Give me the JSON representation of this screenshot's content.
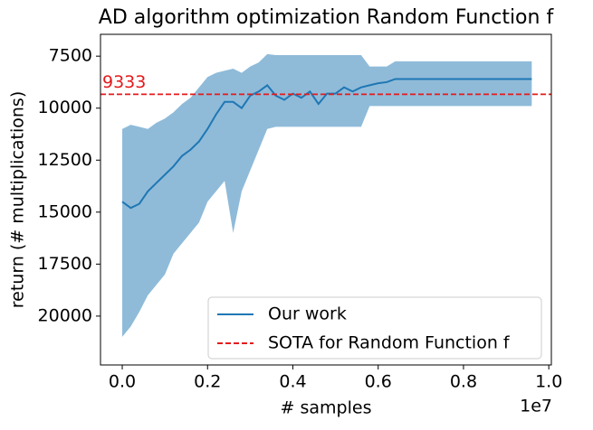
{
  "chart_data": {
    "type": "line",
    "title": "AD algorithm optimization Random Function f",
    "x_label": "# samples",
    "y_label": "return (# multiplications)",
    "x_offset_label": "1e7",
    "x": [
      0,
      200000,
      400000,
      600000,
      800000,
      1000000,
      1200000,
      1400000,
      1600000,
      1800000,
      2000000,
      2200000,
      2400000,
      2600000,
      2800000,
      3000000,
      3200000,
      3400000,
      3600000,
      3800000,
      4000000,
      4200000,
      4400000,
      4600000,
      4800000,
      5000000,
      5200000,
      5400000,
      5600000,
      5800000,
      6000000,
      6200000,
      6400000,
      6600000,
      7000000,
      8000000,
      9000000,
      9600000
    ],
    "series": [
      {
        "name": "Our work",
        "color": "#1f77b4",
        "values": [
          14500,
          14800,
          14600,
          14000,
          13600,
          13200,
          12800,
          12300,
          12000,
          11600,
          11000,
          10300,
          9700,
          9700,
          10000,
          9400,
          9200,
          8900,
          9400,
          9600,
          9300,
          9500,
          9200,
          9800,
          9300,
          9300,
          9000,
          9200,
          9000,
          8900,
          8800,
          8750,
          8600,
          8600,
          8600,
          8600,
          8600,
          8600
        ],
        "band_high": [
          11000,
          10800,
          10900,
          11000,
          10700,
          10500,
          10200,
          9800,
          9500,
          9000,
          8500,
          8300,
          8200,
          8100,
          8300,
          8000,
          7800,
          7400,
          7450,
          7450,
          7450,
          7450,
          7450,
          7450,
          7450,
          7450,
          7450,
          7450,
          7450,
          8000,
          8000,
          8000,
          7750,
          7750,
          7750,
          7750,
          7750,
          7750
        ],
        "band_low": [
          21000,
          20500,
          19800,
          19000,
          18500,
          18000,
          17000,
          16500,
          16000,
          15500,
          14500,
          14000,
          13500,
          16000,
          14000,
          13000,
          12000,
          11000,
          10900,
          10900,
          10900,
          10900,
          10900,
          10900,
          10900,
          10900,
          10900,
          10900,
          10900,
          9900,
          9900,
          9900,
          9900,
          9900,
          9900,
          9900,
          9900,
          9900
        ],
        "band_color": "#8fbbd9"
      }
    ],
    "sota": {
      "name": "SOTA for Random Function f",
      "value": 9333,
      "label": "9333",
      "color": "#e41a1c"
    },
    "xlim": [
      -510000,
      10060000
    ],
    "ylim": [
      22350,
      6450
    ],
    "xticks": [
      {
        "value": 0,
        "label": "0.0"
      },
      {
        "value": 2000000,
        "label": "0.2"
      },
      {
        "value": 4000000,
        "label": "0.4"
      },
      {
        "value": 6000000,
        "label": "0.6"
      },
      {
        "value": 8000000,
        "label": "0.8"
      },
      {
        "value": 10000000,
        "label": "1.0"
      }
    ],
    "yticks": [
      7500,
      10000,
      12500,
      15000,
      17500,
      20000
    ],
    "legend": "lower right"
  }
}
